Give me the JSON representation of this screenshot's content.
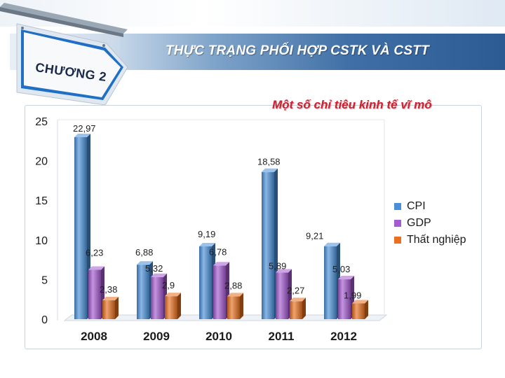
{
  "header": {
    "title": "THỰC TRẠNG PHỐI HỢP CSTK VÀ CSTT",
    "chapter_sign": "CHƯƠNG 2",
    "subtitle": "Một số chỉ tiêu kinh tế vĩ mô",
    "sign_icon": "signpost-arrow-icon"
  },
  "colors": {
    "CPI": "#4a90d9",
    "GDP": "#a45ad0",
    "Thất nghiệp": "#e8701f",
    "header": "#2c5a93",
    "subtitle": "#d1202f"
  },
  "chart_data": {
    "type": "bar",
    "style": "3d-cylinder",
    "categories": [
      "2008",
      "2009",
      "2010",
      "2011",
      "2012"
    ],
    "series": [
      {
        "name": "CPI",
        "values": [
          22.97,
          6.88,
          9.19,
          18.58,
          9.21
        ],
        "labels": [
          "22,97",
          "6,88",
          "9,19",
          "18,58",
          "9,21"
        ]
      },
      {
        "name": "GDP",
        "values": [
          6.23,
          5.32,
          6.78,
          5.89,
          5.03
        ],
        "labels": [
          "6,23",
          "5,32",
          "6,78",
          "5,89",
          "5,03"
        ]
      },
      {
        "name": "Thất nghiệp",
        "values": [
          2.38,
          2.9,
          2.88,
          2.27,
          1.99
        ],
        "labels": [
          "2,38",
          "2,9",
          "2,88",
          "2,27",
          "1,99"
        ]
      }
    ],
    "yticks": [
      "0",
      "5",
      "10",
      "15",
      "20",
      "25"
    ],
    "ylim": [
      0,
      25
    ],
    "grid": false,
    "legend": "right"
  }
}
